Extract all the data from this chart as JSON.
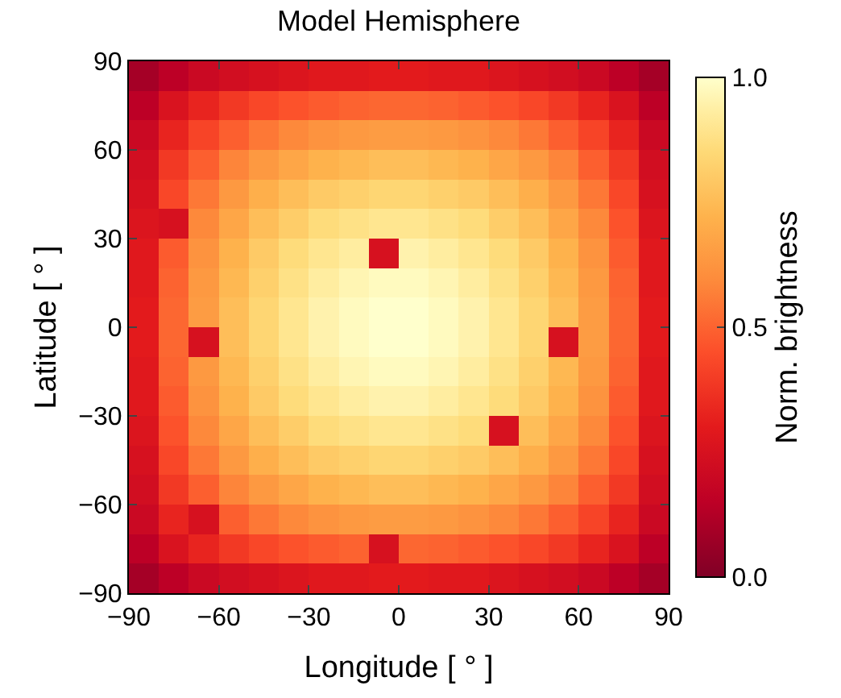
{
  "chart_data": {
    "type": "heatmap",
    "title": "Model Hemisphere",
    "xlabel": "Longitude [ ° ]",
    "ylabel": "Latitude [ ° ]",
    "clabel": "Norm. brightness",
    "x": [
      -85,
      -75,
      -65,
      -55,
      -45,
      -35,
      -25,
      -15,
      -5,
      5,
      15,
      25,
      35,
      45,
      55,
      65,
      75,
      85
    ],
    "y": [
      85,
      75,
      65,
      55,
      45,
      35,
      25,
      15,
      5,
      -5,
      -15,
      -25,
      -35,
      -45,
      -55,
      -65,
      -75,
      -85
    ],
    "cells": [
      [
        0.09,
        0.15,
        0.2,
        0.23,
        0.25,
        0.27,
        0.29,
        0.29,
        0.3,
        0.3,
        0.29,
        0.29,
        0.27,
        0.25,
        0.23,
        0.2,
        0.15,
        0.09
      ],
      [
        0.15,
        0.26,
        0.33,
        0.39,
        0.43,
        0.46,
        0.48,
        0.5,
        0.51,
        0.51,
        0.5,
        0.48,
        0.46,
        0.43,
        0.39,
        0.33,
        0.26,
        0.15
      ],
      [
        0.2,
        0.33,
        0.42,
        0.49,
        0.55,
        0.59,
        0.62,
        0.64,
        0.65,
        0.65,
        0.64,
        0.62,
        0.59,
        0.55,
        0.49,
        0.42,
        0.33,
        0.2
      ],
      [
        0.23,
        0.39,
        0.49,
        0.58,
        0.64,
        0.68,
        0.72,
        0.74,
        0.76,
        0.76,
        0.74,
        0.72,
        0.68,
        0.64,
        0.58,
        0.49,
        0.39,
        0.23
      ],
      [
        0.25,
        0.43,
        0.55,
        0.64,
        0.71,
        0.76,
        0.8,
        0.82,
        0.84,
        0.84,
        0.82,
        0.8,
        0.76,
        0.71,
        0.64,
        0.55,
        0.43,
        0.25
      ],
      [
        0.27,
        0.25,
        0.59,
        0.68,
        0.76,
        0.81,
        0.86,
        0.88,
        0.9,
        0.9,
        0.88,
        0.86,
        0.81,
        0.76,
        0.68,
        0.59,
        0.46,
        0.27
      ],
      [
        0.29,
        0.48,
        0.62,
        0.72,
        0.8,
        0.86,
        0.9,
        0.93,
        0.25,
        0.95,
        0.93,
        0.9,
        0.86,
        0.8,
        0.72,
        0.62,
        0.48,
        0.29
      ],
      [
        0.29,
        0.5,
        0.64,
        0.74,
        0.82,
        0.88,
        0.93,
        0.96,
        0.98,
        0.98,
        0.96,
        0.93,
        0.88,
        0.82,
        0.74,
        0.64,
        0.5,
        0.29
      ],
      [
        0.3,
        0.51,
        0.65,
        0.76,
        0.84,
        0.9,
        0.95,
        0.98,
        1.0,
        1.0,
        0.98,
        0.95,
        0.9,
        0.84,
        0.76,
        0.65,
        0.51,
        0.3
      ],
      [
        0.3,
        0.51,
        0.25,
        0.76,
        0.84,
        0.9,
        0.95,
        0.98,
        1.0,
        1.0,
        0.98,
        0.95,
        0.9,
        0.84,
        0.25,
        0.65,
        0.51,
        0.3
      ],
      [
        0.29,
        0.5,
        0.64,
        0.74,
        0.82,
        0.88,
        0.93,
        0.96,
        0.98,
        0.98,
        0.96,
        0.93,
        0.88,
        0.82,
        0.74,
        0.64,
        0.5,
        0.29
      ],
      [
        0.29,
        0.48,
        0.62,
        0.72,
        0.8,
        0.86,
        0.9,
        0.93,
        0.95,
        0.95,
        0.93,
        0.9,
        0.86,
        0.8,
        0.72,
        0.62,
        0.48,
        0.29
      ],
      [
        0.27,
        0.46,
        0.59,
        0.68,
        0.76,
        0.81,
        0.86,
        0.88,
        0.9,
        0.9,
        0.88,
        0.86,
        0.25,
        0.76,
        0.68,
        0.59,
        0.46,
        0.27
      ],
      [
        0.25,
        0.43,
        0.55,
        0.64,
        0.71,
        0.76,
        0.8,
        0.82,
        0.84,
        0.84,
        0.82,
        0.8,
        0.76,
        0.71,
        0.64,
        0.55,
        0.43,
        0.25
      ],
      [
        0.23,
        0.39,
        0.49,
        0.58,
        0.64,
        0.68,
        0.72,
        0.74,
        0.76,
        0.76,
        0.74,
        0.72,
        0.68,
        0.64,
        0.58,
        0.49,
        0.39,
        0.23
      ],
      [
        0.2,
        0.33,
        0.25,
        0.49,
        0.55,
        0.59,
        0.62,
        0.64,
        0.65,
        0.65,
        0.64,
        0.62,
        0.59,
        0.55,
        0.49,
        0.42,
        0.33,
        0.2
      ],
      [
        0.15,
        0.26,
        0.33,
        0.39,
        0.43,
        0.46,
        0.48,
        0.5,
        0.25,
        0.51,
        0.5,
        0.48,
        0.46,
        0.43,
        0.39,
        0.33,
        0.26,
        0.15
      ],
      [
        0.09,
        0.15,
        0.2,
        0.23,
        0.25,
        0.27,
        0.29,
        0.29,
        0.3,
        0.3,
        0.29,
        0.29,
        0.27,
        0.25,
        0.23,
        0.2,
        0.15,
        0.09
      ]
    ],
    "xlim": [
      -90,
      90
    ],
    "ylim": [
      -90,
      90
    ],
    "xticks": [
      -90,
      -60,
      -30,
      0,
      30,
      60,
      90
    ],
    "yticks": [
      -90,
      -60,
      -30,
      0,
      30,
      60,
      90
    ],
    "clim": [
      0,
      1
    ],
    "cticks": [
      {
        "value": 0,
        "label": "0.0"
      },
      {
        "value": 0.5,
        "label": "0.5"
      },
      {
        "value": 1,
        "label": "1.0"
      }
    ]
  }
}
